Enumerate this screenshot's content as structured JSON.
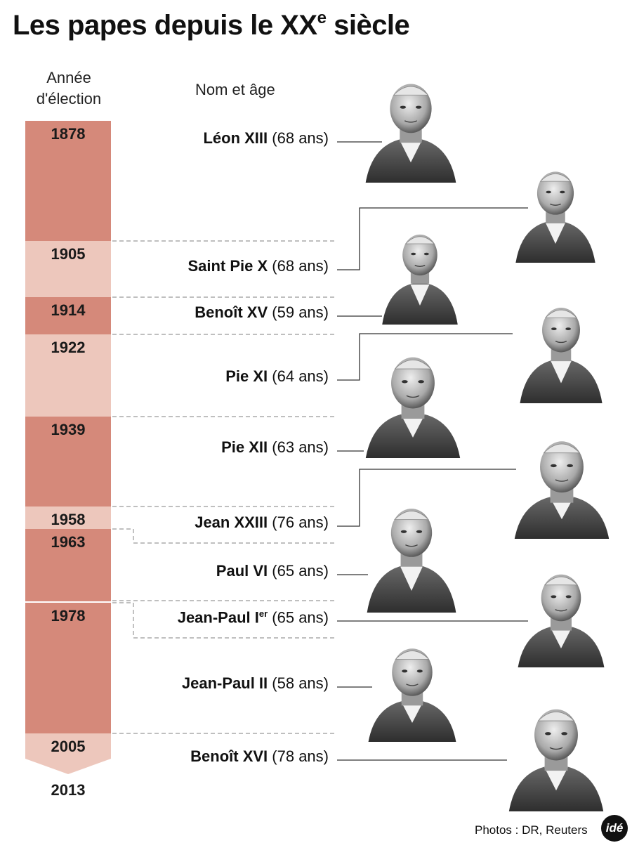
{
  "title": {
    "main": "Les papes depuis le XX",
    "sup": "e",
    "rest": " siècle"
  },
  "headers": {
    "year_line1": "Année",
    "year_line2": "d'élection",
    "name": "Nom et âge"
  },
  "colors": {
    "dark": "#d5897a",
    "light": "#edc7bc",
    "dash": "#999999",
    "line": "#333333"
  },
  "timeline": {
    "segments": [
      {
        "year": "1878",
        "shade": "dark"
      },
      {
        "year": "1905",
        "shade": "light"
      },
      {
        "year": "1914",
        "shade": "dark"
      },
      {
        "year": "1922",
        "shade": "light"
      },
      {
        "year": "1939",
        "shade": "dark"
      },
      {
        "year": "1958",
        "shade": "light"
      },
      {
        "year": "1963",
        "shade": "dark"
      },
      {
        "year": "1978",
        "shade": "dark"
      },
      {
        "year": "2005",
        "shade": "light"
      }
    ],
    "end_year": "2013"
  },
  "popes": [
    {
      "name": "Léon XIII",
      "age": "(68 ans)"
    },
    {
      "name": "Saint Pie X",
      "age": "(68 ans)"
    },
    {
      "name": "Benoît XV",
      "age": "(59 ans)"
    },
    {
      "name": "Pie XI",
      "age": "(64 ans)"
    },
    {
      "name": "Pie XII",
      "age": "(63 ans)"
    },
    {
      "name": "Jean XXIII",
      "age": "(76 ans)"
    },
    {
      "name": "Paul VI",
      "age": "(65 ans)"
    },
    {
      "name": "Jean-Paul I",
      "sup": "er",
      "age": "(65 ans)"
    },
    {
      "name": "Jean-Paul II",
      "age": "(58 ans)"
    },
    {
      "name": "Benoît XVI",
      "age": "(78 ans)"
    }
  ],
  "photos": [
    {
      "icon": "portrait-leon-xiii-icon"
    },
    {
      "icon": "portrait-saint-pie-x-icon"
    },
    {
      "icon": "portrait-benoit-xv-icon"
    },
    {
      "icon": "portrait-pie-xi-icon"
    },
    {
      "icon": "portrait-pie-xii-icon"
    },
    {
      "icon": "portrait-jean-xxiii-icon"
    },
    {
      "icon": "portrait-paul-vi-icon"
    },
    {
      "icon": "portrait-jean-paul-i-icon"
    },
    {
      "icon": "portrait-jean-paul-ii-icon"
    },
    {
      "icon": "portrait-benoit-xvi-icon"
    }
  ],
  "credit": "Photos : DR, Reuters",
  "logo": "idé"
}
